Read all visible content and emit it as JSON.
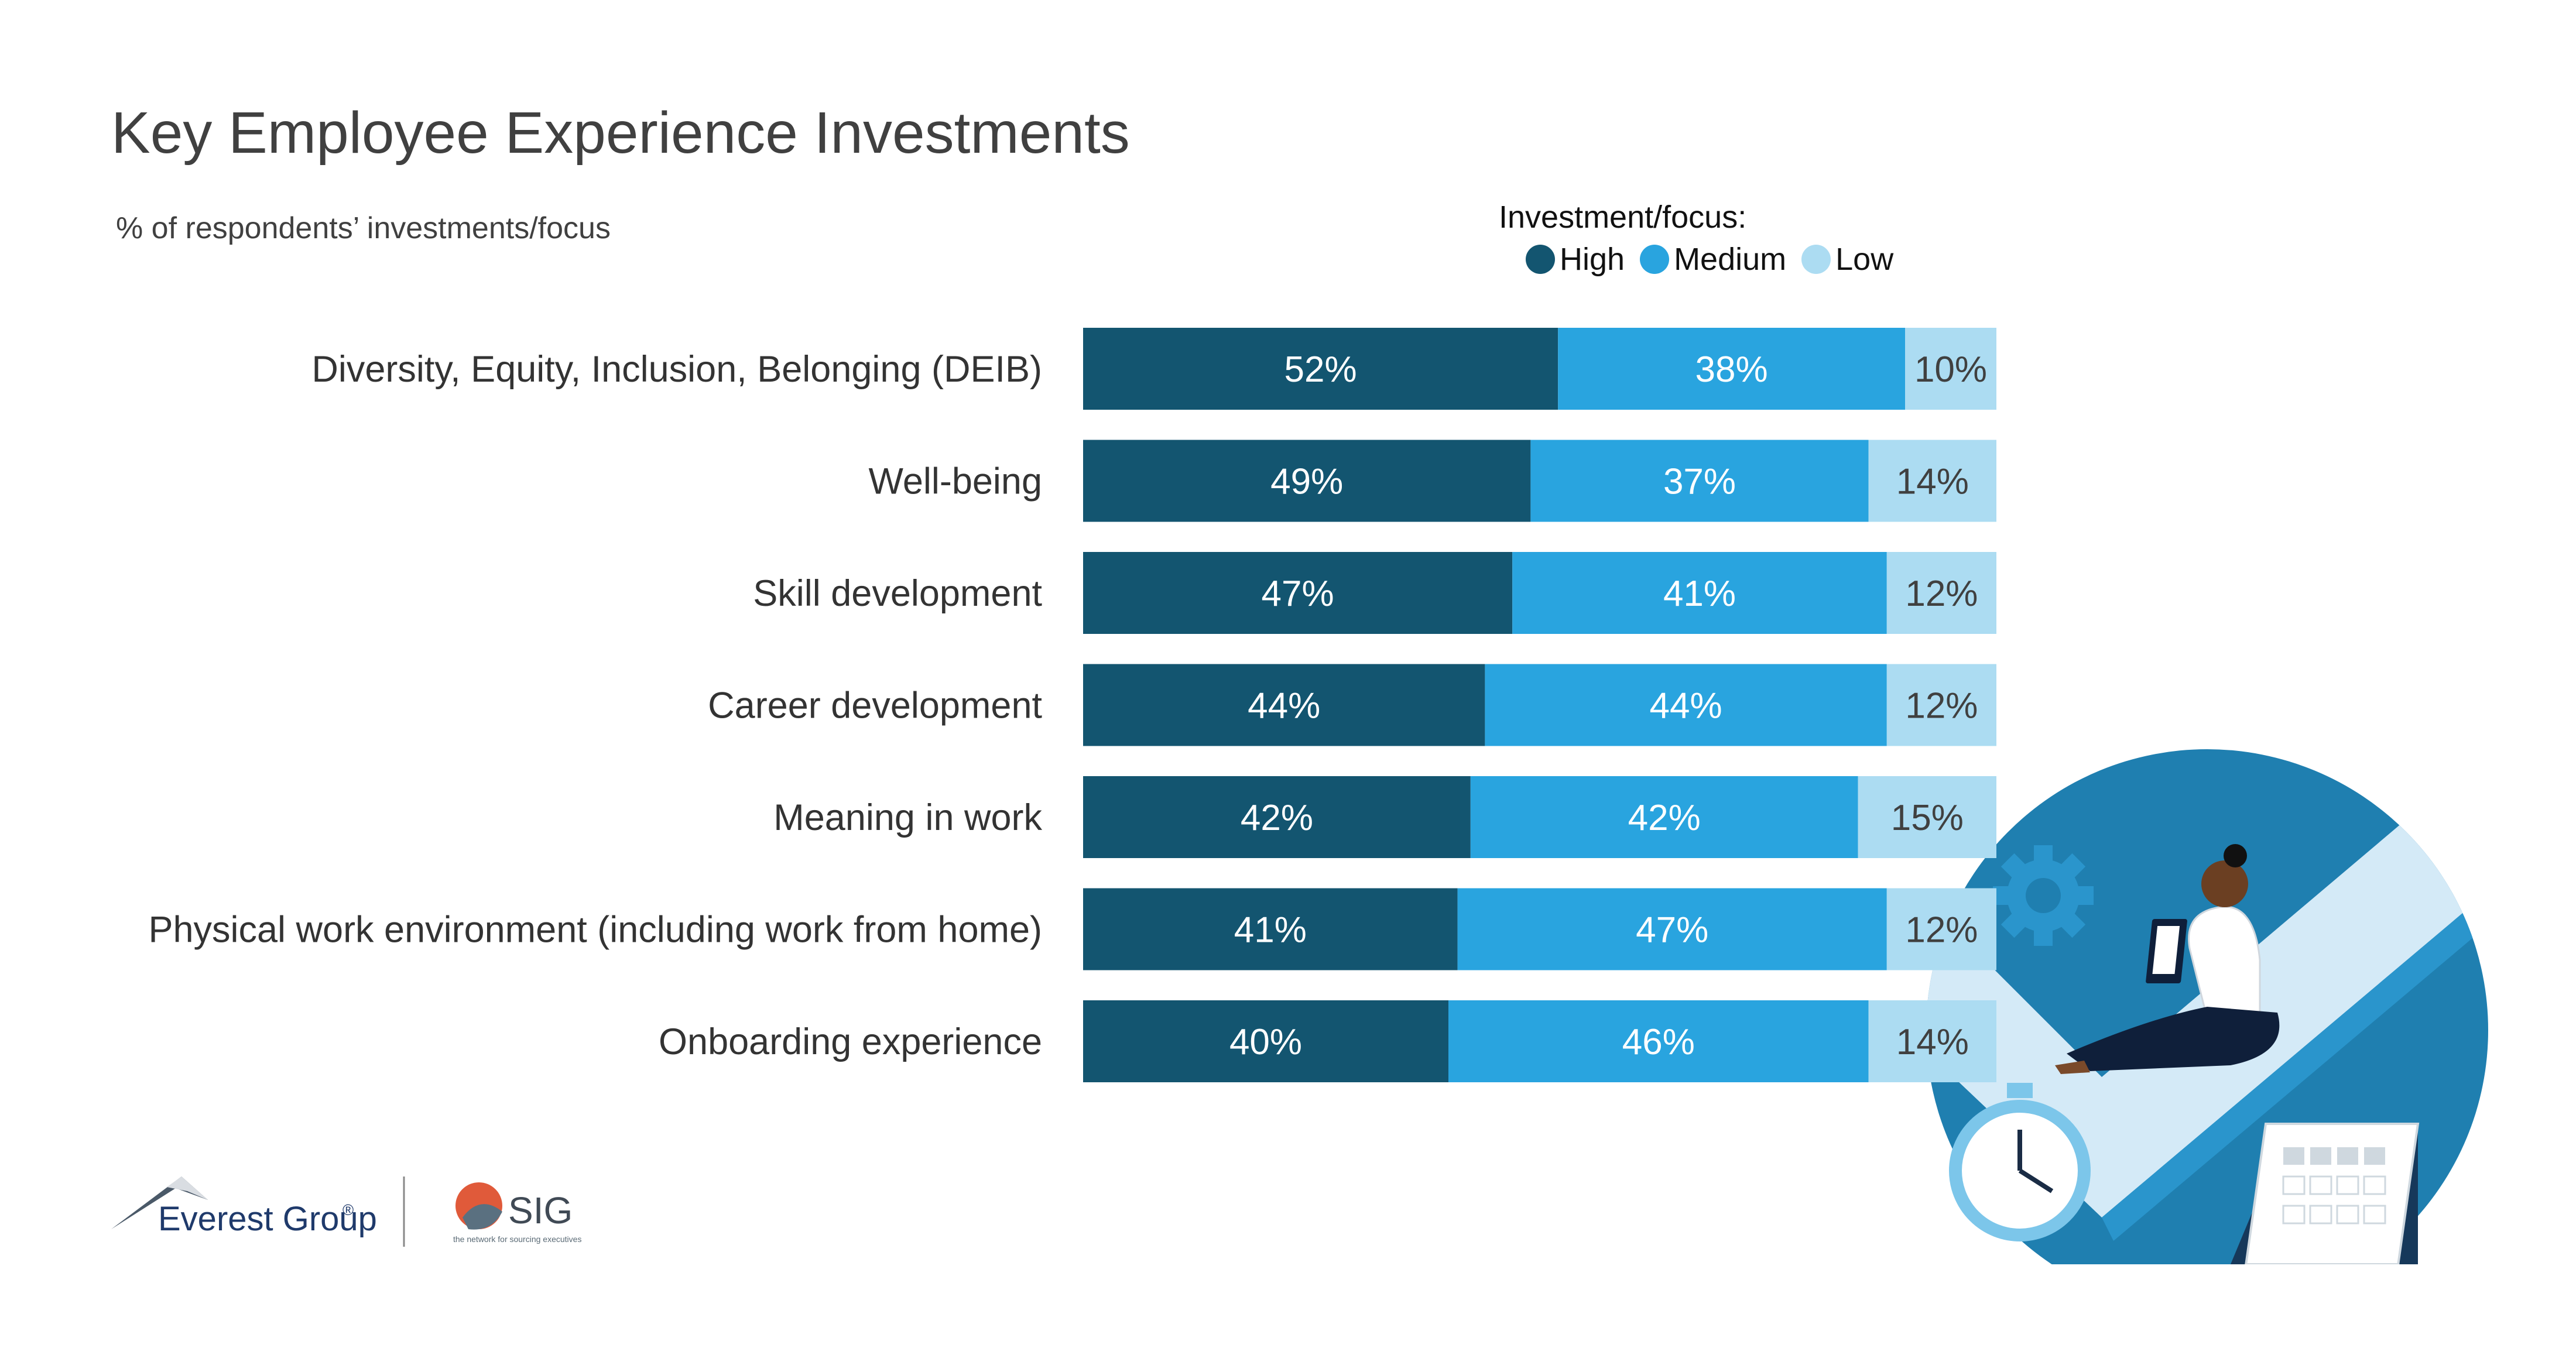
{
  "title": "Key Employee Experience Investments",
  "subtitle": "% of respondents’ investments/focus",
  "legend": {
    "title": "Investment/focus:",
    "items": [
      {
        "label": "High",
        "color": "#135570"
      },
      {
        "label": "Medium",
        "color": "#29a4df"
      },
      {
        "label": "Low",
        "color": "#acdcf2"
      }
    ]
  },
  "chart_data": {
    "type": "bar",
    "orientation": "horizontal",
    "stacked": true,
    "title": "Key Employee Experience Investments",
    "subtitle": "% of respondents’ investments/focus",
    "categories": [
      "Diversity, Equity, Inclusion, Belonging (DEIB)",
      "Well-being",
      "Skill development",
      "Career development",
      "Meaning in work",
      "Physical work environment (including work from home)",
      "Onboarding experience"
    ],
    "series": [
      {
        "name": "High",
        "values": [
          52,
          49,
          47,
          44,
          42,
          41,
          40
        ],
        "color": "#135570"
      },
      {
        "name": "Medium",
        "values": [
          38,
          37,
          41,
          44,
          42,
          47,
          46
        ],
        "color": "#29a4df"
      },
      {
        "name": "Low",
        "values": [
          10,
          14,
          12,
          12,
          15,
          12,
          14
        ],
        "color": "#acdcf2"
      }
    ],
    "value_suffix": "%",
    "legend_position": "top-right",
    "grid": false
  },
  "logos": {
    "everest": "Everest Group",
    "registered": "®",
    "sig": "SIG",
    "sig_tagline": "the network for sourcing executives"
  }
}
